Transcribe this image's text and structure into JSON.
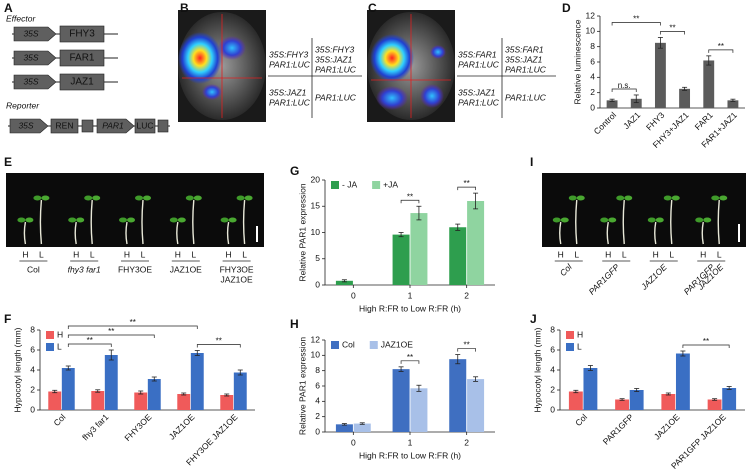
{
  "panel_letters": [
    "A",
    "B",
    "C",
    "D",
    "E",
    "F",
    "G",
    "H",
    "I",
    "J"
  ],
  "construct_diagram": {
    "effector_title": "Effector",
    "effectors": [
      {
        "promoter": "35S",
        "gene": "FHY3"
      },
      {
        "promoter": "35S",
        "gene": "FAR1"
      },
      {
        "promoter": "35S",
        "gene": "JAZ1"
      }
    ],
    "reporter_title": "Reporter",
    "reporter": {
      "promoter": "35S",
      "gene": "REN",
      "promoter2": "PAR1",
      "gene2": "LUC"
    }
  },
  "luciferase_images": [
    {
      "quadrants": [
        [
          "35S:FHY3",
          "PAR1:LUC"
        ],
        [
          "35S:FHY3",
          "35S:JAZ1",
          "PAR1:LUC"
        ],
        [
          "35S:JAZ1",
          "PAR1:LUC"
        ],
        [
          "PAR1:LUC"
        ]
      ]
    },
    {
      "quadrants": [
        [
          "35S:FAR1",
          "PAR1:LUC"
        ],
        [
          "35S:FAR1",
          "35S:JAZ1",
          "PAR1:LUC"
        ],
        [
          "35S:JAZ1",
          "PAR1:LUC"
        ],
        [
          "PAR1:LUC"
        ]
      ]
    }
  ],
  "seedling_images": [
    {
      "light_labels": [
        "H",
        "L"
      ],
      "genotypes": [
        [
          "Col"
        ],
        [
          "fhy3 far1"
        ],
        [
          "FHY3OE"
        ],
        [
          "JAZ1OE"
        ],
        [
          "FHY3OE",
          "JAZ1OE"
        ]
      ]
    },
    {
      "light_labels": [
        "H",
        "L"
      ],
      "genotypes": [
        [
          "Col"
        ],
        [
          "PAR1GFP"
        ],
        [
          "JAZ1OE"
        ],
        [
          "PAR1GFP",
          "JAZ1OE"
        ]
      ]
    }
  ],
  "chart_data": [
    {
      "type": "bar",
      "ylabel": "Relative luminescence",
      "categories": [
        "Control",
        "JAZ1",
        "FHY3",
        "FHY3+JAZ1",
        "FAR1",
        "FAR1+JAZ1"
      ],
      "series": [
        {
          "color": "#5b5b5b",
          "values": [
            1.0,
            1.2,
            8.5,
            2.5,
            6.2,
            1.0
          ],
          "errors": [
            0.15,
            0.5,
            0.7,
            0.2,
            0.6,
            0.15
          ]
        }
      ],
      "ylim": [
        0,
        12
      ],
      "yticks": [
        0,
        2,
        4,
        6,
        8,
        10,
        12
      ],
      "brackets": [
        {
          "label": "n.s.",
          "bars": [
            [
              0,
              0
            ],
            [
              0,
              1
            ]
          ]
        },
        {
          "label": "**",
          "bars": [
            [
              0,
              2
            ],
            [
              0,
              3
            ]
          ]
        },
        {
          "label": "**",
          "bars": [
            [
              0,
              0
            ],
            [
              0,
              2
            ]
          ]
        },
        {
          "label": "**",
          "bars": [
            [
              0,
              4
            ],
            [
              0,
              5
            ]
          ]
        }
      ]
    },
    {
      "type": "bar",
      "ylabel": "Hypocotyl length (mm)",
      "categories": [
        "Col",
        "fhy3 far1",
        "FHY3OE",
        "JAZ1OE",
        "FHY3OE JAZ1OE"
      ],
      "series": [
        {
          "name": "H",
          "color": "#f05a5a",
          "values": [
            1.85,
            1.9,
            1.75,
            1.6,
            1.5
          ],
          "errors": [
            0.12,
            0.12,
            0.15,
            0.1,
            0.1
          ]
        },
        {
          "name": "L",
          "color": "#3a6fc4",
          "values": [
            4.2,
            5.5,
            3.1,
            5.7,
            3.75
          ],
          "errors": [
            0.2,
            0.5,
            0.2,
            0.25,
            0.25
          ]
        }
      ],
      "ylim": [
        0,
        8
      ],
      "yticks": [
        0,
        2,
        4,
        6,
        8
      ],
      "legend": "upper left",
      "brackets": [
        {
          "label": "**",
          "bars": [
            [
              1,
              0
            ],
            [
              1,
              1
            ]
          ]
        },
        {
          "label": "**",
          "bars": [
            [
              1,
              0
            ],
            [
              1,
              2
            ]
          ]
        },
        {
          "label": "**",
          "bars": [
            [
              1,
              3
            ],
            [
              1,
              4
            ]
          ]
        },
        {
          "label": "**",
          "bars": [
            [
              1,
              0
            ],
            [
              1,
              3
            ]
          ]
        }
      ]
    },
    {
      "type": "bar",
      "ylabel": "Relative PAR1 expression",
      "xlabel": "High R:FR to Low R:FR (h)",
      "categories": [
        "0",
        "1",
        "2"
      ],
      "series": [
        {
          "name": "- JA",
          "color": "#2e9e4e",
          "values": [
            0.8,
            9.6,
            11.0
          ],
          "errors": [
            0.2,
            0.4,
            0.6
          ]
        },
        {
          "name": "+JA",
          "color": "#8fd4a0",
          "values": [
            null,
            13.7,
            16.0
          ],
          "errors": [
            null,
            1.3,
            1.5
          ]
        }
      ],
      "ylim": [
        0,
        20
      ],
      "yticks": [
        0,
        5,
        10,
        15,
        20
      ],
      "legend": "upper left",
      "brackets": [
        {
          "label": "**",
          "bars": [
            [
              0,
              1
            ],
            [
              1,
              1
            ]
          ]
        },
        {
          "label": "**",
          "bars": [
            [
              0,
              2
            ],
            [
              1,
              2
            ]
          ]
        }
      ]
    },
    {
      "type": "bar",
      "ylabel": "Relative PAR1 expression",
      "xlabel": "High R:FR to Low R:FR (h)",
      "categories": [
        "0",
        "1",
        "2"
      ],
      "series": [
        {
          "name": "Col",
          "color": "#3f6fc1",
          "values": [
            1.0,
            8.2,
            9.5
          ],
          "errors": [
            0.1,
            0.3,
            0.6
          ]
        },
        {
          "name": "JAZ1OE",
          "color": "#a8c0e8",
          "values": [
            1.1,
            5.7,
            6.9
          ],
          "errors": [
            0.1,
            0.4,
            0.3
          ]
        }
      ],
      "ylim": [
        0,
        12
      ],
      "yticks": [
        0,
        2,
        4,
        6,
        8,
        10,
        12
      ],
      "legend": "upper left",
      "brackets": [
        {
          "label": "**",
          "bars": [
            [
              0,
              1
            ],
            [
              1,
              1
            ]
          ]
        },
        {
          "label": "**",
          "bars": [
            [
              0,
              2
            ],
            [
              1,
              2
            ]
          ]
        }
      ]
    },
    {
      "type": "bar",
      "ylabel": "Hypocotyl length (mm)",
      "categories": [
        "Col",
        "PAR1GFP",
        "JAZ1OE",
        "PAR1GFP JAZ1OE"
      ],
      "series": [
        {
          "name": "H",
          "color": "#f05a5a",
          "values": [
            1.85,
            1.05,
            1.6,
            1.05
          ],
          "errors": [
            0.12,
            0.08,
            0.1,
            0.08
          ]
        },
        {
          "name": "L",
          "color": "#3a6fc4",
          "values": [
            4.2,
            2.0,
            5.65,
            2.2
          ],
          "errors": [
            0.25,
            0.15,
            0.25,
            0.15
          ]
        }
      ],
      "ylim": [
        0,
        8
      ],
      "yticks": [
        0,
        2,
        4,
        6,
        8
      ],
      "legend": "upper left",
      "brackets": [
        {
          "label": "**",
          "bars": [
            [
              1,
              2
            ],
            [
              1,
              3
            ]
          ]
        }
      ]
    }
  ]
}
